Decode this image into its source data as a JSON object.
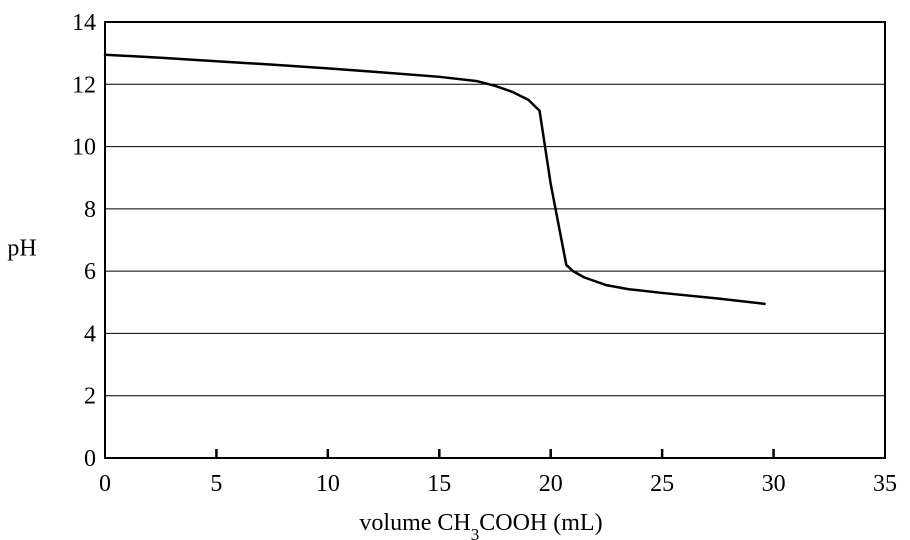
{
  "chart_data": {
    "type": "line",
    "title": "",
    "xlabel": {
      "prefix": "volume CH",
      "subscript": "3",
      "suffix": "COOH (mL)"
    },
    "ylabel": "pH",
    "xlim": [
      0,
      35
    ],
    "ylim": [
      0,
      14
    ],
    "xticks": [
      0,
      5,
      10,
      15,
      20,
      25,
      30,
      35
    ],
    "yticks": [
      0,
      2,
      4,
      6,
      8,
      10,
      12,
      14
    ],
    "grid": {
      "horizontal": true,
      "vertical": false
    },
    "series": [
      {
        "color": "#000000",
        "points": [
          {
            "x": 0,
            "y": 12.95
          },
          {
            "x": 2.5,
            "y": 12.85
          },
          {
            "x": 5,
            "y": 12.74
          },
          {
            "x": 7.5,
            "y": 12.63
          },
          {
            "x": 10,
            "y": 12.51
          },
          {
            "x": 12.5,
            "y": 12.38
          },
          {
            "x": 15,
            "y": 12.24
          },
          {
            "x": 16.7,
            "y": 12.1
          },
          {
            "x": 17.5,
            "y": 11.95
          },
          {
            "x": 18.3,
            "y": 11.75
          },
          {
            "x": 19.0,
            "y": 11.5
          },
          {
            "x": 19.5,
            "y": 11.15
          },
          {
            "x": 20.0,
            "y": 8.8
          },
          {
            "x": 20.7,
            "y": 6.2
          },
          {
            "x": 21.0,
            "y": 6.0
          },
          {
            "x": 21.5,
            "y": 5.8
          },
          {
            "x": 22.5,
            "y": 5.55
          },
          {
            "x": 23.5,
            "y": 5.42
          },
          {
            "x": 25,
            "y": 5.3
          },
          {
            "x": 27.5,
            "y": 5.12
          },
          {
            "x": 29.6,
            "y": 4.95
          }
        ]
      }
    ]
  }
}
